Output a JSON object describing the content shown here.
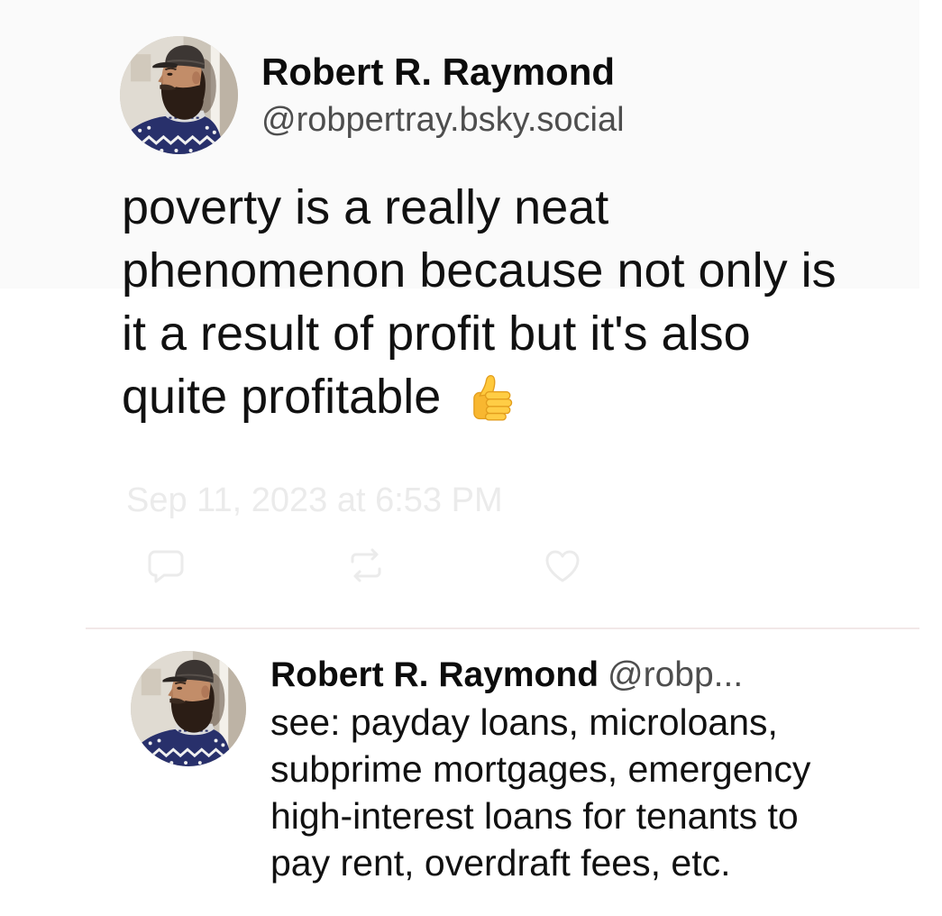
{
  "colors": {
    "bg": "#ffffff",
    "panel": "#fafafa",
    "text": "#111111",
    "name": "#0c0c0c",
    "handle": "#4e4e4e",
    "faint": "#ebebeb",
    "divider": "#f2e8e8"
  },
  "post": {
    "author": {
      "display_name": "Robert R. Raymond",
      "handle": "@robpertray.bsky.social",
      "avatar": "avatar-photo"
    },
    "text_lines": [
      "poverty is a really neat",
      "phenomenon because not only is",
      "it a result of profit but it's also",
      "quite profitable"
    ],
    "trailing_emoji_icon": "thumbs-up-icon",
    "timestamp": "Sep 11, 2023 at 6:53 PM",
    "action_icons": [
      "reply-icon",
      "repost-icon",
      "like-icon"
    ]
  },
  "reply": {
    "author": {
      "display_name": "Robert R. Raymond",
      "handle": "@robp...",
      "avatar": "avatar-photo"
    },
    "text_lines": [
      "see: payday loans, microloans,",
      "subprime mortgages, emergency",
      "high-interest loans for tenants to",
      "pay rent, overdraft fees, etc."
    ]
  }
}
